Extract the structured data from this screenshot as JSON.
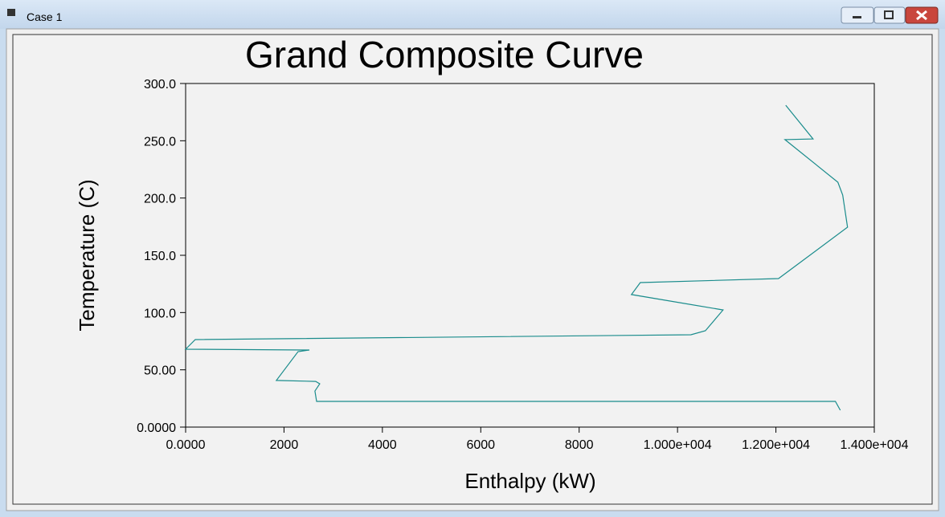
{
  "window": {
    "title": "Case 1"
  },
  "chart_data": {
    "type": "line",
    "title": "Grand Composite Curve",
    "x_label": "Enthalpy (kW)",
    "y_label": "Temperature (C)",
    "x": [
      12200,
      12755,
      12183,
      13260,
      13358,
      13456,
      12052,
      9243,
      9064,
      10925,
      10566,
      10272,
      196,
      0,
      2515,
      2286,
      1845,
      2645,
      2727,
      2629,
      2662,
      13210,
      13309
    ],
    "series": [
      {
        "color": "#1a8c8c",
        "values": [
          281,
          251.6,
          251,
          213.8,
          202.6,
          174.5,
          129.7,
          126.2,
          115.7,
          102.3,
          84.1,
          80.6,
          76.4,
          68,
          67.3,
          65.9,
          40.7,
          39.9,
          37.8,
          31.5,
          22.4,
          22.4,
          14.7
        ]
      }
    ],
    "xlim": [
      0,
      14000
    ],
    "xticks": [
      {
        "value": 0,
        "label": "0.0000"
      },
      2000,
      4000,
      6000,
      8000,
      {
        "value": 10000,
        "label": "1.000e+004"
      },
      {
        "value": 12000,
        "label": "1.200e+004"
      },
      {
        "value": 14000,
        "label": "1.400e+004"
      }
    ],
    "ylim": [
      0,
      300
    ],
    "yticks": [
      {
        "value": 0,
        "label": "0.0000"
      },
      {
        "value": 50,
        "label": "50.00"
      },
      {
        "value": 100,
        "label": "100.0"
      },
      {
        "value": 150,
        "label": "150.0"
      },
      {
        "value": 200,
        "label": "200.0"
      },
      {
        "value": 250,
        "label": "250.0"
      },
      {
        "value": 300,
        "label": "300.0"
      }
    ],
    "grid": false
  }
}
